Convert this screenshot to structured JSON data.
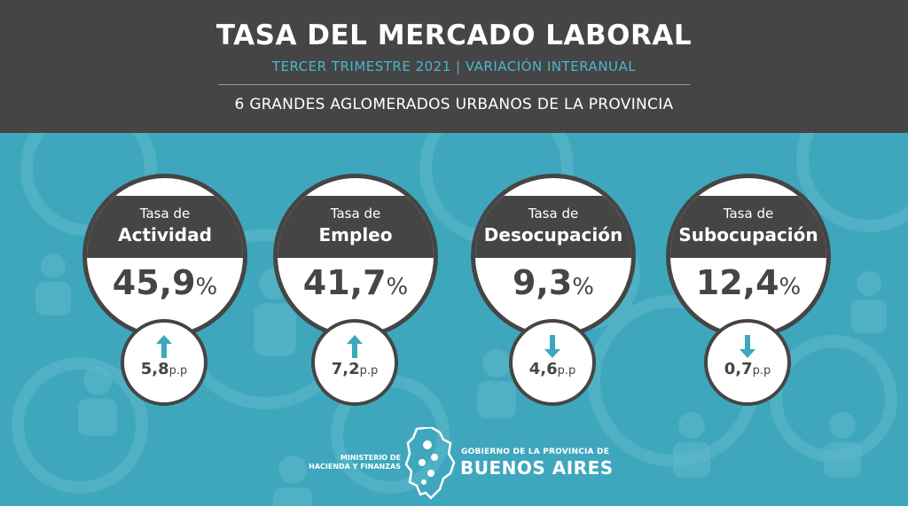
{
  "header": {
    "title": "TASA DEL MERCADO LABORAL",
    "subtitle": "TERCER TRIMESTRE 2021 | VARIACIÓN INTERANUAL",
    "region": "6 GRANDES AGLOMERADOS URBANOS DE LA PROVINCIA"
  },
  "colors": {
    "header_bg": "#454545",
    "page_bg": "#3ea7bd",
    "accent": "#49b7cc",
    "arrow": "#3ea7bd"
  },
  "indicators": [
    {
      "label_top": "Tasa de",
      "label_main": "Actividad",
      "value": "45,9",
      "unit": "%",
      "change": "5,8",
      "change_unit": "p.p",
      "direction": "up",
      "arrow_icon": "arrow-up-icon"
    },
    {
      "label_top": "Tasa de",
      "label_main": "Empleo",
      "value": "41,7",
      "unit": "%",
      "change": "7,2",
      "change_unit": "p.p",
      "direction": "up",
      "arrow_icon": "arrow-up-icon"
    },
    {
      "label_top": "Tasa de",
      "label_main": "Desocupación",
      "value": "9,3",
      "unit": "%",
      "change": "4,6",
      "change_unit": "p.p",
      "direction": "down",
      "arrow_icon": "arrow-down-icon"
    },
    {
      "label_top": "Tasa de",
      "label_main": "Subocupación",
      "value": "12,4",
      "unit": "%",
      "change": "0,7",
      "change_unit": "p.p",
      "direction": "down",
      "arrow_icon": "arrow-down-icon"
    }
  ],
  "footer": {
    "ministry_line1": "MINISTERIO DE",
    "ministry_line2": "HACIENDA Y FINANZAS",
    "gov_small": "GOBIERNO DE LA PROVINCIA DE",
    "gov_big": "BUENOS AIRES",
    "emblem_icon": "province-map-emblem-icon"
  },
  "background": {
    "pattern_icons": [
      "gear-icon",
      "person-icon"
    ]
  }
}
